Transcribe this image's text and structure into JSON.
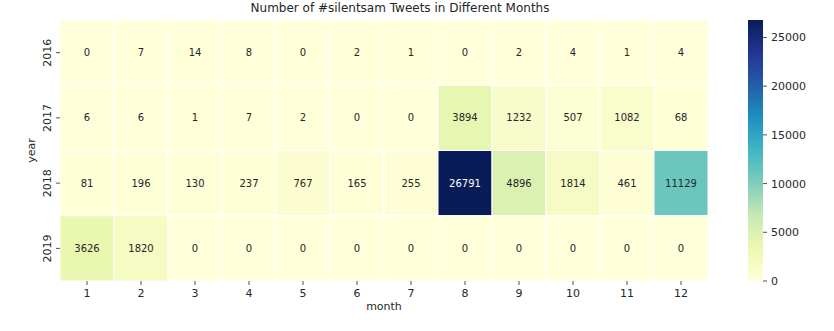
{
  "chart_data": {
    "type": "heatmap",
    "title": "Number of #silentsam Tweets in Different Months",
    "x_label": "month",
    "y_label": "year",
    "x": [
      1,
      2,
      3,
      4,
      5,
      6,
      7,
      8,
      9,
      10,
      11,
      12
    ],
    "y": [
      2016,
      2017,
      2018,
      2019
    ],
    "cells": [
      [
        0,
        7,
        14,
        8,
        0,
        2,
        1,
        0,
        2,
        4,
        1,
        4
      ],
      [
        6,
        6,
        1,
        7,
        2,
        0,
        0,
        3894,
        1232,
        507,
        1082,
        68
      ],
      [
        81,
        196,
        130,
        237,
        767,
        165,
        255,
        26791,
        4896,
        1814,
        461,
        11129
      ],
      [
        3626,
        1820,
        0,
        0,
        0,
        0,
        0,
        0,
        0,
        0,
        0,
        0
      ]
    ],
    "color": "YlGnBu",
    "color_range": [
      0,
      26791
    ],
    "color_ticks": [
      0,
      5000,
      10000,
      15000,
      20000,
      25000
    ],
    "data_labels": true
  }
}
